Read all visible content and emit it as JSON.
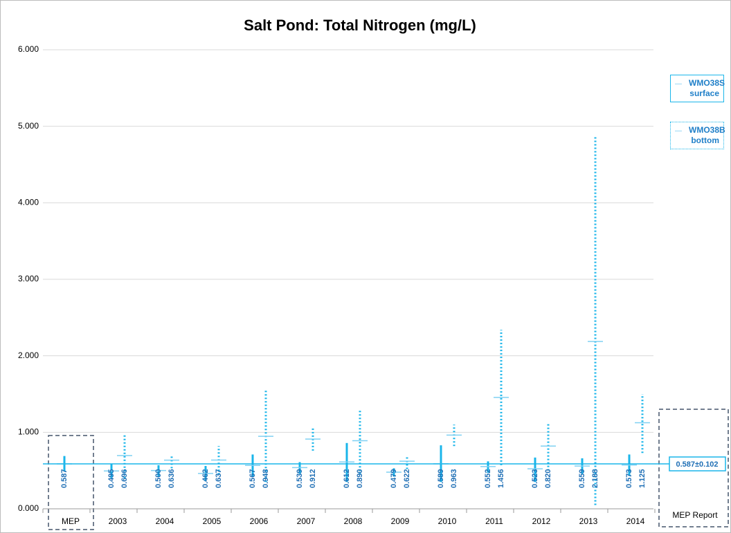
{
  "chart_data": {
    "type": "range",
    "title": "Salt Pond: Total Nitrogen (mg/L)",
    "categories": [
      "MEP",
      "2003",
      "2004",
      "2005",
      "2006",
      "2007",
      "2008",
      "2009",
      "2010",
      "2011",
      "2012",
      "2013",
      "2014"
    ],
    "series": [
      {
        "name": "WMO38S surface",
        "color": "#19b5ea",
        "style": "solid",
        "values": [
          0.587,
          0.495,
          0.5,
          0.462,
          0.567,
          0.539,
          0.612,
          0.479,
          0.589,
          0.552,
          0.523,
          0.559,
          0.573
        ],
        "value_labels": [
          "0.587",
          "0.495",
          "0.500",
          "0.462",
          "0.567",
          "0.539",
          "0.612",
          "0.479",
          "0.589",
          "0.552",
          "0.523",
          "0.559",
          "0.573"
        ],
        "min": [
          0.49,
          0.4,
          0.42,
          0.36,
          0.42,
          0.46,
          0.35,
          0.42,
          0.35,
          0.47,
          0.35,
          0.46,
          0.43
        ],
        "max": [
          0.69,
          0.59,
          0.57,
          0.56,
          0.71,
          0.61,
          0.86,
          0.53,
          0.83,
          0.62,
          0.67,
          0.66,
          0.71
        ]
      },
      {
        "name": "WMO38B bottom",
        "color": "#19b5ea",
        "style": "dotted",
        "values": [
          null,
          0.696,
          0.636,
          0.637,
          0.948,
          0.912,
          0.89,
          0.622,
          0.963,
          1.456,
          0.82,
          2.188,
          1.125
        ],
        "value_labels": [
          null,
          "0.696",
          "0.636",
          "0.637",
          "0.948",
          "0.912",
          "0.890",
          "0.622",
          "0.963",
          "1.456",
          "0.820",
          "2.188",
          "1.125"
        ],
        "min": [
          null,
          0.4,
          0.53,
          0.45,
          0.35,
          0.76,
          0.45,
          0.52,
          0.82,
          0.57,
          0.5,
          0.05,
          0.73
        ],
        "max": [
          null,
          0.96,
          0.71,
          0.82,
          1.55,
          1.06,
          1.3,
          0.7,
          1.1,
          2.34,
          1.12,
          4.88,
          1.5
        ]
      }
    ],
    "reference": {
      "value": 0.587,
      "label": "0.587±0.102"
    },
    "annotation": "MEP Report",
    "ylim": [
      0,
      6
    ],
    "yticks": [
      {
        "value": 0,
        "label": "0.000"
      },
      {
        "value": 1,
        "label": "1.000"
      },
      {
        "value": 2,
        "label": "2.000"
      },
      {
        "value": 3,
        "label": "3.000"
      },
      {
        "value": 4,
        "label": "4.000"
      },
      {
        "value": 5,
        "label": "5.000"
      },
      {
        "value": 6,
        "label": "6.000"
      }
    ],
    "grid": true
  }
}
